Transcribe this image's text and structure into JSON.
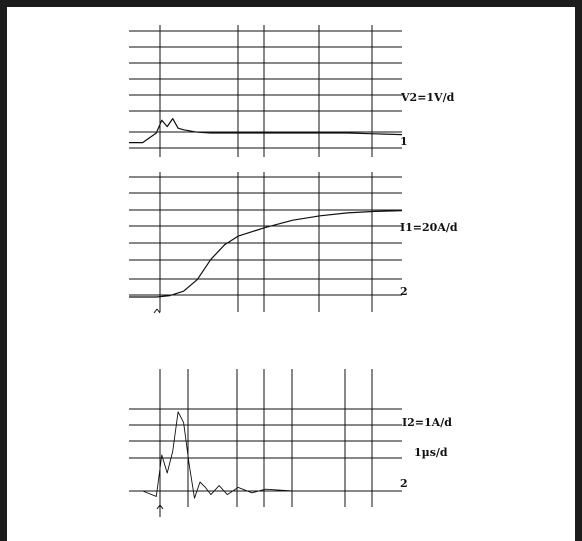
{
  "chart_data": [
    {
      "type": "line",
      "panel": "top",
      "label": "V2=1V/d",
      "channel_marker": "1",
      "grid": true,
      "description": "voltage transient: rises from low level, ringing burst, settles to flat level",
      "x": [
        0,
        0.5,
        1.0,
        1.2,
        1.4,
        1.6,
        1.8,
        2.0,
        2.5,
        3.0,
        4.0,
        5.0,
        6.0,
        7.0,
        8.0,
        9.0,
        10.0
      ],
      "y": [
        -0.6,
        -0.6,
        0.0,
        0.8,
        0.4,
        0.9,
        0.3,
        0.2,
        0.05,
        0.0,
        0.0,
        0.0,
        0.0,
        0.0,
        0.0,
        -0.05,
        -0.1
      ]
    },
    {
      "type": "line",
      "panel": "middle",
      "label": "I1=20A/d",
      "channel_marker": "2",
      "grid": true,
      "description": "current rise: flat, then S-shaped rise approaching a plateau",
      "x": [
        0,
        1.0,
        1.5,
        2.0,
        2.5,
        3.0,
        3.5,
        4.0,
        5.0,
        6.0,
        7.0,
        8.0,
        9.0,
        10.0
      ],
      "y": [
        0,
        0,
        0.1,
        0.4,
        1.2,
        2.6,
        3.6,
        4.2,
        4.8,
        5.3,
        5.6,
        5.8,
        5.9,
        5.95
      ]
    },
    {
      "type": "line",
      "panel": "bottom",
      "label": "I2=1A/d",
      "time_label": "1µs/d",
      "channel_marker": "2",
      "grid": true,
      "description": "damped ringing current: two large peaks then decaying oscillation to baseline",
      "x": [
        0,
        0.5,
        1.0,
        1.2,
        1.4,
        1.6,
        1.8,
        2.0,
        2.2,
        2.4,
        2.6,
        2.8,
        3.0,
        3.3,
        3.6,
        4.0,
        4.5,
        5.0,
        6.0,
        7.0,
        8.0,
        10.0
      ],
      "y": [
        0,
        0,
        -0.3,
        2.0,
        1.0,
        2.2,
        4.4,
        3.8,
        1.5,
        -0.4,
        0.5,
        0.2,
        -0.2,
        0.3,
        -0.2,
        0.2,
        -0.1,
        0.1,
        0,
        0,
        0,
        0
      ]
    }
  ]
}
